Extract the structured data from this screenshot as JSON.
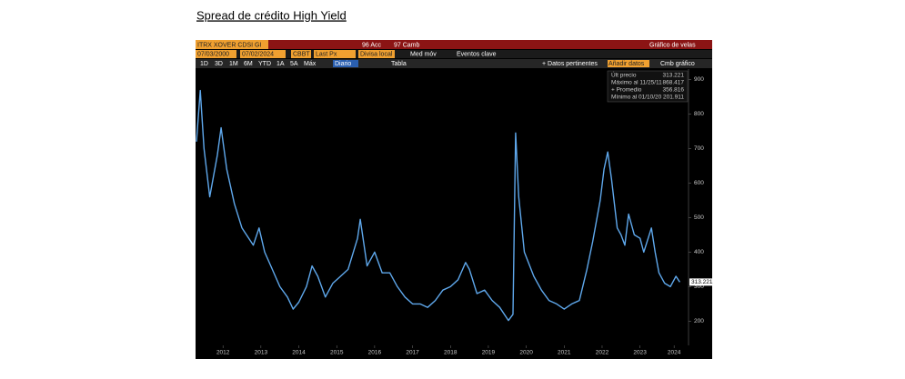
{
  "chart_data": {
    "type": "line",
    "title": "Spread de crédito High Yield",
    "toolbar": {
      "row1": [
        "ITRX XOVER CDSI GI",
        "96 Acc",
        "97 Camb",
        "Gráfico de velas"
      ],
      "row2": [
        "07/03/2000",
        "07/02/2024",
        "CBBT",
        "Last Px",
        "Divisa local",
        "Med móv",
        "Eventos clave"
      ],
      "row3": [
        "1D",
        "3D",
        "1M",
        "6M",
        "YTD",
        "1A",
        "5A",
        "Máx",
        "Diario",
        "Tabla",
        "+ Datos pertinentes",
        "Añadir datos",
        "Cmb gráfico"
      ]
    },
    "legend_box": [
      {
        "label": "Últ precio",
        "value": 313.221
      },
      {
        "label": "Máximo al 11/25/11",
        "value": 868.417
      },
      {
        "label": "+ Promedio",
        "value": 356.816
      },
      {
        "label": "Mínimo al 01/10/20",
        "value": 201.911
      }
    ],
    "x": [
      2011.8,
      2011.9,
      2012.0,
      2012.15,
      2012.35,
      2012.45,
      2012.6,
      2012.8,
      2013.0,
      2013.3,
      2013.45,
      2013.6,
      2013.8,
      2014.0,
      2014.2,
      2014.35,
      2014.5,
      2014.7,
      2014.85,
      2015.0,
      2015.2,
      2015.4,
      2015.6,
      2015.8,
      2016.05,
      2016.12,
      2016.3,
      2016.5,
      2016.7,
      2016.9,
      2017.1,
      2017.3,
      2017.5,
      2017.7,
      2017.9,
      2018.1,
      2018.3,
      2018.5,
      2018.7,
      2018.9,
      2019.0,
      2019.2,
      2019.4,
      2019.6,
      2019.8,
      2020.03,
      2020.15,
      2020.22,
      2020.3,
      2020.45,
      2020.7,
      2020.9,
      2021.1,
      2021.3,
      2021.5,
      2021.7,
      2021.9,
      2022.1,
      2022.25,
      2022.45,
      2022.55,
      2022.65,
      2022.75,
      2022.9,
      2023.0,
      2023.1,
      2023.2,
      2023.35,
      2023.5,
      2023.6,
      2023.8,
      2023.9,
      2024.0,
      2024.15,
      2024.3,
      2024.45,
      2024.55
    ],
    "series": [
      {
        "name": "ITRX XOVER CDSI GE",
        "color": "#5fa8ec",
        "values": [
          720,
          868,
          700,
          560,
          680,
          760,
          640,
          540,
          470,
          420,
          470,
          400,
          350,
          300,
          270,
          235,
          255,
          300,
          360,
          330,
          270,
          310,
          330,
          350,
          440,
          495,
          360,
          400,
          340,
          340,
          300,
          270,
          250,
          250,
          240,
          260,
          290,
          300,
          320,
          370,
          350,
          280,
          290,
          260,
          240,
          202,
          220,
          745,
          560,
          400,
          330,
          290,
          260,
          250,
          235,
          250,
          260,
          350,
          430,
          550,
          640,
          690,
          610,
          470,
          450,
          420,
          510,
          450,
          440,
          400,
          470,
          400,
          340,
          310,
          300,
          330,
          313.221
        ]
      }
    ],
    "xlim": [
      2011.8,
      2024.78
    ],
    "xticks": [
      {
        "value": 2012.5,
        "label": "2012"
      },
      {
        "value": 2013.5,
        "label": "2013"
      },
      {
        "value": 2014.5,
        "label": "2014"
      },
      {
        "value": 2015.5,
        "label": "2015"
      },
      {
        "value": 2016.5,
        "label": "2016"
      },
      {
        "value": 2017.5,
        "label": "2017"
      },
      {
        "value": 2018.5,
        "label": "2018"
      },
      {
        "value": 2019.5,
        "label": "2019"
      },
      {
        "value": 2020.5,
        "label": "2020"
      },
      {
        "value": 2021.5,
        "label": "2021"
      },
      {
        "value": 2022.5,
        "label": "2022"
      },
      {
        "value": 2023.5,
        "label": "2023"
      },
      {
        "value": 2024.4,
        "label": "2024"
      }
    ],
    "ylim": [
      130,
      930
    ],
    "yticks": [
      200,
      300,
      400,
      500,
      600,
      700,
      800,
      900
    ],
    "grid": false
  }
}
